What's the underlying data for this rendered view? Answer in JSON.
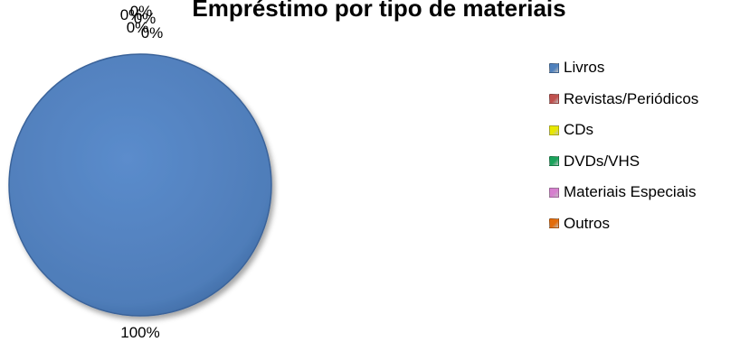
{
  "chart_data": {
    "type": "pie",
    "title": "Empréstimo por tipo de materiais",
    "categories": [
      "Livros",
      "Revistas/Periódicos",
      "CDs",
      "DVDs/VHS",
      "Materiais Especiais",
      "Outros"
    ],
    "values": [
      100,
      0,
      0,
      0,
      0,
      0
    ],
    "data_labels": [
      "100%",
      "0%",
      "0%",
      "0%",
      "0%",
      "0%"
    ],
    "colors": [
      "#4F81BD",
      "#C0504D",
      "#E8E800",
      "#1AA35B",
      "#D67FCE",
      "#E36C0A"
    ],
    "legend": "right"
  }
}
